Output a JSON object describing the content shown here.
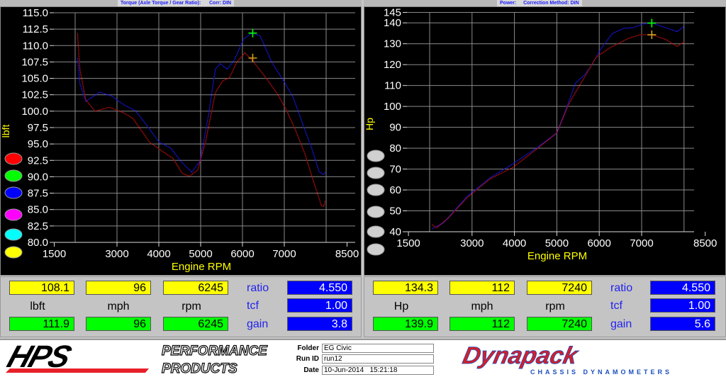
{
  "torque_panel": {
    "title_left": "Torque (Axle Torque / Gear Ratio):",
    "title_right": "Corr: DIN",
    "legend_colors": [
      "#ff0000",
      "#00ff00",
      "#0000ff",
      "#ff00ff",
      "#00ffff",
      "#ffff00"
    ],
    "readout": {
      "top": [
        "108.1",
        "96",
        "6245"
      ],
      "labels": [
        "lbft",
        "mph",
        "rpm"
      ],
      "bottom": [
        "111.9",
        "96",
        "6245"
      ],
      "side_labels": [
        "ratio",
        "tcf",
        "gain"
      ],
      "side_values": [
        "4.550",
        "1.00",
        "3.8"
      ]
    }
  },
  "power_panel": {
    "title_left": "Power:",
    "title_right": "Correction Method: DIN",
    "legend_colors": [
      "#d0d0d0",
      "#d0d0d0",
      "#d0d0d0",
      "#d0d0d0",
      "#d0d0d0",
      "#d0d0d0"
    ],
    "readout": {
      "top": [
        "134.3",
        "112",
        "7240"
      ],
      "labels": [
        "Hp",
        "mph",
        "rpm"
      ],
      "bottom": [
        "139.9",
        "112",
        "7240"
      ],
      "side_labels": [
        "ratio",
        "tcf",
        "gain"
      ],
      "side_values": [
        "4.550",
        "1.00",
        "5.6"
      ]
    }
  },
  "chart_data": [
    {
      "type": "line",
      "xlabel": "Engine RPM",
      "ylabel": "lbft",
      "xlim": [
        1500,
        8500
      ],
      "ylim": [
        80,
        115
      ],
      "xticks": [
        1500,
        3000,
        4000,
        5000,
        6000,
        7000,
        8500
      ],
      "yticks": [
        "80.0",
        "82.5",
        "85.0",
        "87.5",
        "90.0",
        "92.5",
        "95.0",
        "97.5",
        "100.0",
        "102.5",
        "105.0",
        "107.5",
        "110.0",
        "112.5",
        "115.0"
      ],
      "grid": true,
      "series": [
        {
          "color": "#1a1aff",
          "x": [
            2056,
            2113,
            2254,
            2592,
            2873,
            3155,
            3437,
            3718,
            4000,
            4282,
            4563,
            4789,
            4986,
            5183,
            5352,
            5465,
            5634,
            5803,
            6028,
            6225,
            6423,
            6704,
            6986,
            7211,
            7437,
            7662,
            7831,
            7944,
            7977
          ],
          "y": [
            108.1,
            104.2,
            101.5,
            102.9,
            102.3,
            101.0,
            100.1,
            97.8,
            95.3,
            94.4,
            92.1,
            90.7,
            92.4,
            99.2,
            106.4,
            107.25,
            106.4,
            107.8,
            111.0,
            111.9,
            111.5,
            107.4,
            104.6,
            102.1,
            98.1,
            94.2,
            90.8,
            90.3,
            90.8
          ]
        },
        {
          "color": "#cc1111",
          "x": [
            2056,
            2113,
            2254,
            2479,
            2817,
            3155,
            3380,
            3775,
            4056,
            4338,
            4563,
            4732,
            4930,
            5127,
            5352,
            5521,
            5690,
            5859,
            6056,
            6254,
            6535,
            6817,
            7042,
            7268,
            7493,
            7718,
            7887,
            7944,
            7977
          ],
          "y": [
            111.9,
            106.4,
            101.7,
            100.0,
            100.6,
            99.75,
            98.9,
            95.3,
            94.0,
            92.8,
            90.5,
            90.1,
            91.0,
            95.6,
            102.8,
            104.6,
            105.1,
            107.4,
            108.9,
            107.6,
            105.3,
            102.8,
            100.3,
            97.1,
            93.5,
            88.9,
            85.6,
            85.5,
            86.4
          ]
        }
      ],
      "markers": [
        {
          "x": 6245,
          "y": 111.9,
          "color": "#00ff00"
        },
        {
          "x": 6245,
          "y": 108.1,
          "color": "#d4a017"
        }
      ]
    },
    {
      "type": "line",
      "xlabel": "Engine RPM",
      "ylabel": "Hp",
      "xlim": [
        1500,
        8500
      ],
      "ylim": [
        40,
        145
      ],
      "xticks": [
        1500,
        3000,
        4000,
        5000,
        6000,
        7000,
        8500
      ],
      "yticks": [
        "40",
        "50",
        "60",
        "70",
        "80",
        "90",
        "100",
        "110",
        "120",
        "130",
        "140",
        "145"
      ],
      "grid": true,
      "series": [
        {
          "color": "#1a1aff",
          "x": [
            2055,
            2327,
            2873,
            3418,
            3964,
            4509,
            5000,
            5219,
            5437,
            5655,
            5819,
            6037,
            6310,
            6582,
            6801,
            7019,
            7237,
            7564,
            7837,
            8001
          ],
          "y": [
            41.4,
            44.2,
            56.7,
            65.7,
            72.5,
            79.9,
            87.3,
            98.6,
            111.1,
            115.1,
            119.6,
            127.5,
            134.9,
            137.4,
            137.7,
            139.4,
            140,
            137.7,
            135.8,
            138.3
          ]
        },
        {
          "color": "#cc1111",
          "x": [
            2055,
            2164,
            2436,
            2873,
            3418,
            3964,
            4509,
            5000,
            5273,
            5600,
            5928,
            6255,
            6692,
            6965,
            7237,
            7564,
            7837,
            8001
          ],
          "y": [
            43.3,
            41.9,
            46.5,
            56.1,
            65.2,
            70.8,
            79.3,
            87.3,
            100.9,
            112.2,
            123.6,
            128.1,
            132.6,
            134.3,
            134.3,
            132.1,
            128.7,
            130.9
          ]
        }
      ],
      "markers": [
        {
          "x": 7240,
          "y": 139.9,
          "color": "#00ff00"
        },
        {
          "x": 7240,
          "y": 134.3,
          "color": "#d4a017"
        }
      ]
    }
  ],
  "footer": {
    "hps_logo": "HPS",
    "hps_tag1": "PERFORMANCE",
    "hps_tag2": "PRODUCTS",
    "folder_label": "Folder",
    "folder": "EG Civic",
    "runid_label": "Run ID",
    "runid": "run12",
    "date_label": "Date",
    "date": "10-Jun-2014   15:21:18",
    "dyn_logo": "Dynapack",
    "dyn_tag": "CHASSIS DYNAMOMETERS"
  }
}
